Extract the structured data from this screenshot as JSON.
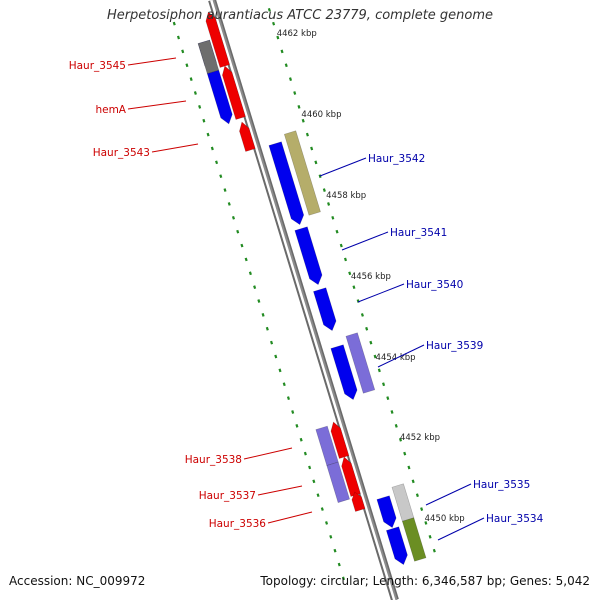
{
  "title": "Herpetosiphon aurantiacus ATCC 23779, complete genome",
  "footer": {
    "accession": "Accession: NC_009972",
    "topology": "Topology: circular; Length: 6,346,587 bp; Genes: 5,042"
  },
  "colors": {
    "backbone": "#8c8c8c",
    "forward_gene": "#0000ee",
    "reverse_gene": "#ee0000",
    "purple_gene": "#7b6dd8",
    "olive_gene": "#b5ad6a",
    "green_gene": "#6b8e23",
    "gray_gene": "#6e6e6e",
    "light_gray_gene": "#c8c8c8",
    "tick": "#228b22",
    "label_red": "#cc0000",
    "label_blue": "#0000aa"
  },
  "scale_labels": [
    "4462 kbp",
    "4460 kbp",
    "4458 kbp",
    "4456 kbp",
    "4454 kbp",
    "4452 kbp",
    "4450 kbp"
  ],
  "gene_labels": {
    "left": [
      "Haur_3545",
      "hemA",
      "Haur_3543",
      "Haur_3538",
      "Haur_3537",
      "Haur_3536"
    ],
    "right": [
      "Haur_3542",
      "Haur_3541",
      "Haur_3540",
      "Haur_3539",
      "Haur_3535",
      "Haur_3534"
    ]
  }
}
